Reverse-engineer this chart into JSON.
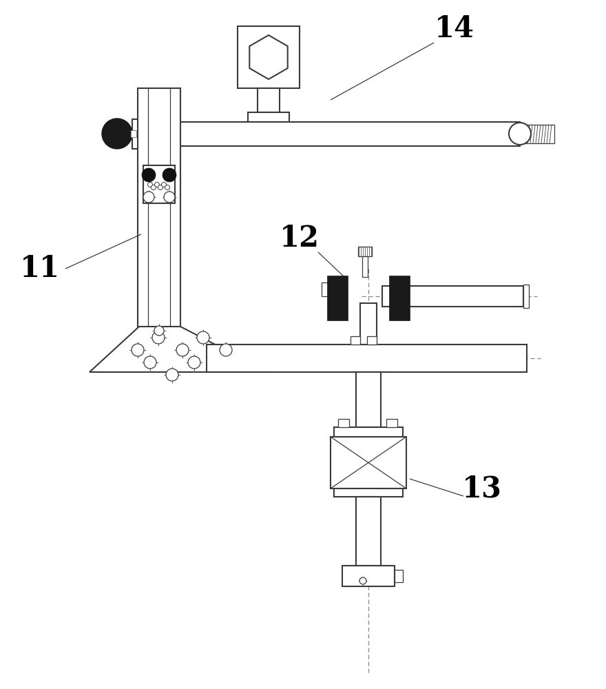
{
  "bg_color": "#ffffff",
  "line_color": "#3a3a3a",
  "dashed_color": "#888888",
  "label_fontsize": 30,
  "lw_main": 1.5,
  "lw_thin": 0.9
}
